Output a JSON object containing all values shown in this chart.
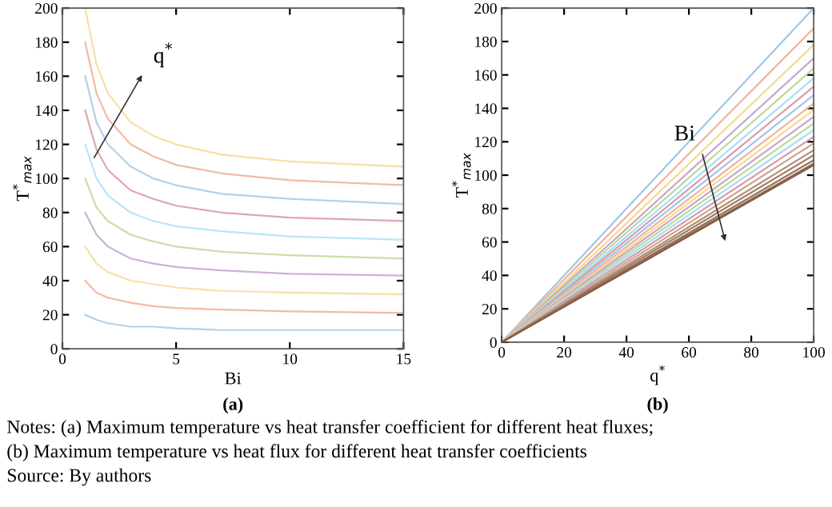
{
  "chart_data": [
    {
      "type": "line",
      "xlabel": "Bi",
      "ylabel": "T$^{*}$$_{max}$",
      "xlim": [
        0,
        15
      ],
      "ylim": [
        0,
        200
      ],
      "xticks": [
        0,
        5,
        10,
        15
      ],
      "yticks": [
        0,
        20,
        40,
        60,
        80,
        100,
        120,
        140,
        160,
        180,
        200
      ],
      "grid": false,
      "legend": false,
      "marker": "none",
      "line_style": "solid",
      "x": [
        1,
        1.5,
        2,
        3,
        4,
        5,
        7,
        10,
        15
      ],
      "series": [
        {
          "color": "#b3d1ea",
          "values": [
            20,
            17,
            15,
            13,
            13,
            12,
            11,
            11,
            11
          ]
        },
        {
          "color": "#f2bba3",
          "values": [
            40,
            33,
            30,
            27,
            25,
            24,
            23,
            22,
            21
          ]
        },
        {
          "color": "#f7e0a6",
          "values": [
            60,
            50,
            45,
            40,
            38,
            36,
            34,
            33,
            32
          ]
        },
        {
          "color": "#cdb1d3",
          "values": [
            80,
            67,
            60,
            53,
            50,
            48,
            46,
            44,
            43
          ]
        },
        {
          "color": "#c7dfa8",
          "values": [
            100,
            83,
            75,
            67,
            63,
            60,
            57,
            55,
            53
          ]
        },
        {
          "color": "#b8e5f8",
          "values": [
            120,
            100,
            90,
            80,
            75,
            72,
            69,
            66,
            64
          ]
        },
        {
          "color": "#e0a6b1",
          "values": [
            140,
            117,
            105,
            93,
            88,
            84,
            80,
            77,
            75
          ]
        },
        {
          "color": "#b3d1ea",
          "values": [
            160,
            133,
            120,
            107,
            100,
            96,
            91,
            88,
            85
          ]
        },
        {
          "color": "#f2bba3",
          "values": [
            180,
            150,
            135,
            120,
            113,
            108,
            103,
            99,
            96
          ]
        },
        {
          "color": "#f7e0a6",
          "values": [
            200,
            167,
            150,
            133,
            125,
            120,
            114,
            110,
            107
          ]
        }
      ],
      "annotations": [
        "(a)",
        "q$^{*}$",
        "Notes: (a) Maximum temperature vs heat transfer coefficient for different heat fluxes;",
        "(b) Maximum temperature vs heat flux for different heat transfer coefficients",
        "Source: By authors"
      ]
    },
    {
      "type": "line",
      "xlabel": "q$^{*}$",
      "ylabel": "T$^{*}$$_{max}$",
      "xlim": [
        0,
        100
      ],
      "ylim": [
        0,
        200
      ],
      "xticks": [
        0,
        20,
        40,
        60,
        80,
        100
      ],
      "yticks": [
        0,
        20,
        40,
        60,
        80,
        100,
        120,
        140,
        160,
        180,
        200
      ],
      "grid": false,
      "legend": false,
      "marker": "none",
      "line_style": "solid",
      "x": [
        0,
        100
      ],
      "series": [
        {
          "color": "#9fc6e6",
          "values": [
            0,
            200
          ]
        },
        {
          "color": "#f2b29a",
          "values": [
            0,
            188
          ]
        },
        {
          "color": "#f5d98f",
          "values": [
            0,
            178
          ]
        },
        {
          "color": "#c6a6cf",
          "values": [
            0,
            170
          ]
        },
        {
          "color": "#bcd99a",
          "values": [
            0,
            164
          ]
        },
        {
          "color": "#a9def5",
          "values": [
            0,
            158
          ]
        },
        {
          "color": "#dc9aa8",
          "values": [
            0,
            153
          ]
        },
        {
          "color": "#9fc6e6",
          "values": [
            0,
            148
          ]
        },
        {
          "color": "#f2b29a",
          "values": [
            0,
            143
          ]
        },
        {
          "color": "#f5d98f",
          "values": [
            0,
            139
          ]
        },
        {
          "color": "#c6a6cf",
          "values": [
            0,
            135
          ]
        },
        {
          "color": "#bcd99a",
          "values": [
            0,
            131
          ]
        },
        {
          "color": "#a9def5",
          "values": [
            0,
            127
          ]
        },
        {
          "color": "#dc9aa8",
          "values": [
            0,
            123
          ]
        },
        {
          "color": "#c9a690",
          "values": [
            0,
            119
          ]
        },
        {
          "color": "#b58f78",
          "values": [
            0,
            115
          ]
        },
        {
          "color": "#a37c65",
          "values": [
            0,
            112
          ]
        },
        {
          "color": "#966f59",
          "values": [
            0,
            109
          ]
        },
        {
          "color": "#8c6650",
          "values": [
            0,
            107
          ]
        },
        {
          "color": "#85604a",
          "values": [
            0,
            106
          ]
        }
      ],
      "annotations": [
        "(b)",
        "Bi"
      ]
    }
  ]
}
